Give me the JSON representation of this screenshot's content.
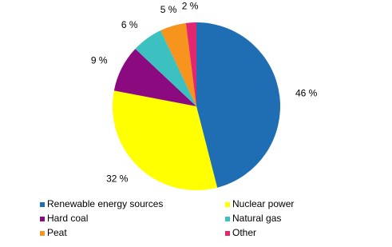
{
  "chart_data": {
    "type": "pie",
    "categories": [
      "Renewable energy sources",
      "Nuclear power",
      "Hard coal",
      "Natural gas",
      "Peat",
      "Other"
    ],
    "values": [
      46,
      32,
      9,
      6,
      5,
      2
    ],
    "value_labels": [
      "46 %",
      "32 %",
      "9 %",
      "6 %",
      "5 %",
      "2 %"
    ],
    "colors": [
      "#1f6eb3",
      "#ffff00",
      "#8c0a7f",
      "#3cc0c0",
      "#f7941d",
      "#e3266f"
    ]
  }
}
